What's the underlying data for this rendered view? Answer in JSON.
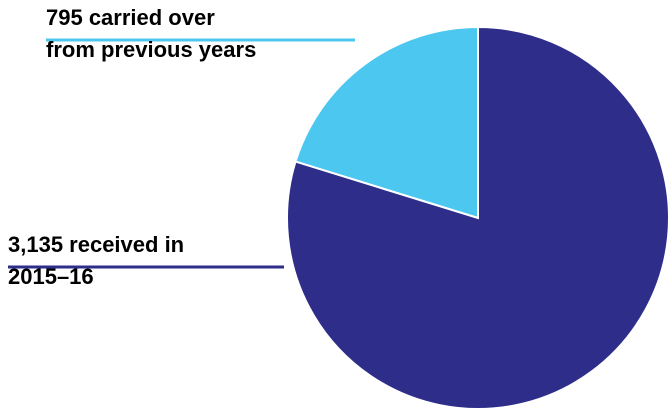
{
  "chart_data": {
    "type": "pie",
    "slices": [
      {
        "label": "795 carried over from previous years",
        "label_lines": [
          "795 carried over",
          "from previous years"
        ],
        "value": 795,
        "color": "#4CC8F0"
      },
      {
        "label": "3,135 received in 2015–16",
        "label_lines": [
          "3,135 received in",
          "2015–16"
        ],
        "value": 3135,
        "color": "#2E2E8A"
      }
    ],
    "start": "12 o'clock",
    "direction": "counter-clockwise"
  }
}
